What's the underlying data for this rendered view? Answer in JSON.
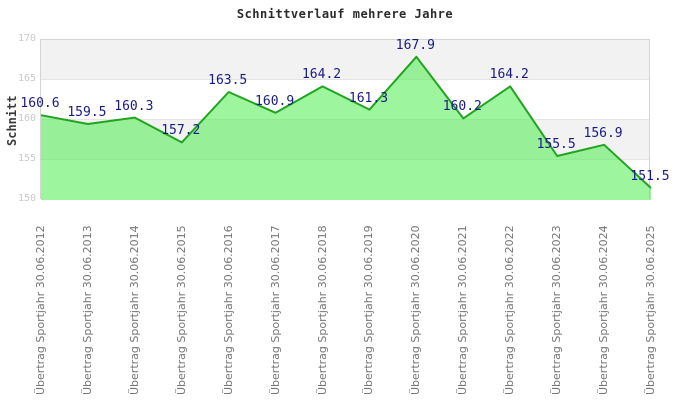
{
  "chart_data": {
    "type": "area",
    "title": "Schnittverlauf mehrere Jahre",
    "ylabel": "Schnitt",
    "xlabel": "",
    "ylim": [
      150,
      170
    ],
    "yticks": [
      170,
      165,
      160,
      155,
      150
    ],
    "grid": "horizontal-bands",
    "legend": "none",
    "categories": [
      "Übertrag Sportjahr 30.06.2012",
      "Übertrag Sportjahr 30.06.2013",
      "Übertrag Sportjahr 30.06.2014",
      "Übertrag Sportjahr 30.06.2015",
      "Übertrag Sportjahr 30.06.2016",
      "Übertrag Sportjahr 30.06.2017",
      "Übertrag Sportjahr 30.06.2018",
      "Übertrag Sportjahr 30.06.2019",
      "Übertrag Sportjahr 30.06.2020",
      "Übertrag Sportjahr 30.06.2021",
      "Übertrag Sportjahr 30.06.2022",
      "Übertrag Sportjahr 30.06.2023",
      "Übertrag Sportjahr 30.06.2024",
      "Übertrag Sportjahr 30.06.2025"
    ],
    "values": [
      160.6,
      159.5,
      160.3,
      157.2,
      163.5,
      160.9,
      164.2,
      161.3,
      167.9,
      160.2,
      164.2,
      155.5,
      156.9,
      151.5
    ],
    "colors": {
      "area_fill": "rgba(60,235,60,0.5)",
      "line": "#22a322",
      "value_label": "#1a1a85",
      "x_label": "#767676",
      "y_tick": "#c9c9c9",
      "band_gray": "#f2f2f2",
      "band_white": "#ffffff",
      "plot_border": "#d4d4d4",
      "title": "#2b2b2b"
    }
  }
}
